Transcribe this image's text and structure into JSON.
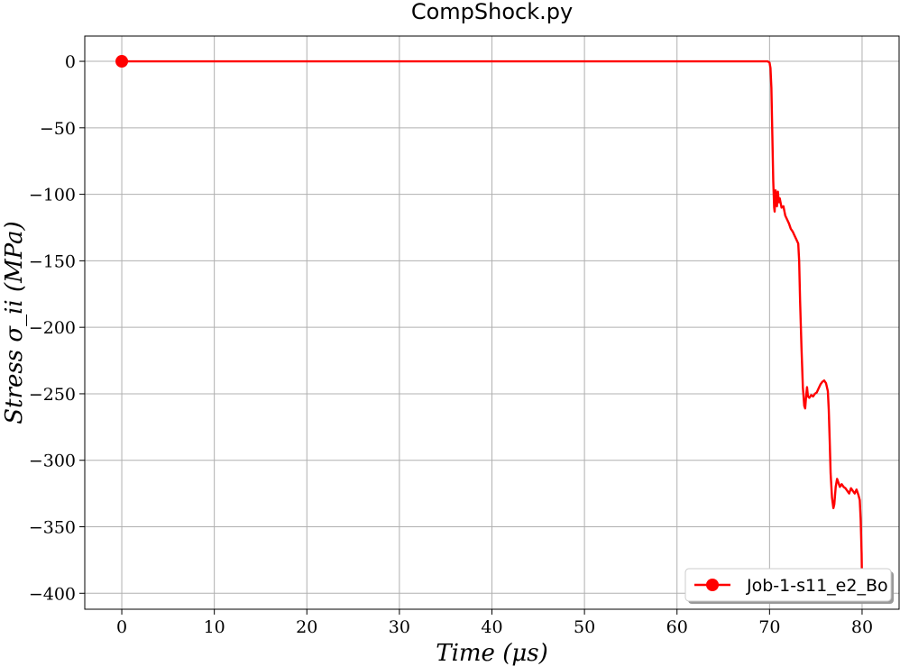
{
  "chart_data": {
    "type": "line",
    "title": "CompShock.py",
    "xlabel": "Time (μs)",
    "ylabel": "Stress σ_ii (MPa)",
    "xlim": [
      -4,
      84
    ],
    "ylim": [
      -412,
      19
    ],
    "xticks": [
      0,
      10,
      20,
      30,
      40,
      50,
      60,
      70,
      80
    ],
    "yticks": [
      0,
      -50,
      -100,
      -150,
      -200,
      -250,
      -300,
      -350,
      -400
    ],
    "xtick_labels": [
      "0",
      "10",
      "20",
      "30",
      "40",
      "50",
      "60",
      "70",
      "80"
    ],
    "ytick_labels": [
      "0",
      "−50",
      "−100",
      "−150",
      "−200",
      "−250",
      "−300",
      "−350",
      "−400"
    ],
    "grid": true,
    "legend_position": "lower-right",
    "series": [
      {
        "name": "Job-1-s11_e2_Bo",
        "color": "#ff0000",
        "marker": "circle",
        "marker_at": [
          0,
          0
        ],
        "points": [
          [
            0,
            0
          ],
          [
            69.8,
            0
          ],
          [
            70.0,
            -1
          ],
          [
            70.1,
            -5
          ],
          [
            70.2,
            -20
          ],
          [
            70.3,
            -55
          ],
          [
            70.4,
            -90
          ],
          [
            70.5,
            -110
          ],
          [
            70.55,
            -113
          ],
          [
            70.6,
            -105
          ],
          [
            70.65,
            -97
          ],
          [
            70.7,
            -103
          ],
          [
            70.8,
            -109
          ],
          [
            70.9,
            -98
          ],
          [
            71.0,
            -106
          ],
          [
            71.1,
            -103
          ],
          [
            71.3,
            -110
          ],
          [
            71.5,
            -109
          ],
          [
            71.7,
            -116
          ],
          [
            71.9,
            -119
          ],
          [
            72.1,
            -122
          ],
          [
            72.3,
            -126
          ],
          [
            72.5,
            -128
          ],
          [
            72.7,
            -131
          ],
          [
            72.9,
            -134
          ],
          [
            73.1,
            -137
          ],
          [
            73.2,
            -150
          ],
          [
            73.3,
            -180
          ],
          [
            73.45,
            -215
          ],
          [
            73.6,
            -245
          ],
          [
            73.75,
            -259
          ],
          [
            73.85,
            -261
          ],
          [
            73.95,
            -252
          ],
          [
            74.05,
            -245
          ],
          [
            74.15,
            -252
          ],
          [
            74.3,
            -253
          ],
          [
            74.5,
            -251
          ],
          [
            74.7,
            -252
          ],
          [
            74.9,
            -250
          ],
          [
            75.1,
            -249
          ],
          [
            75.3,
            -246
          ],
          [
            75.5,
            -243
          ],
          [
            75.7,
            -241
          ],
          [
            75.9,
            -240
          ],
          [
            76.1,
            -242
          ],
          [
            76.3,
            -248
          ],
          [
            76.4,
            -262
          ],
          [
            76.5,
            -285
          ],
          [
            76.6,
            -310
          ],
          [
            76.75,
            -328
          ],
          [
            76.9,
            -336
          ],
          [
            77.0,
            -333
          ],
          [
            77.15,
            -320
          ],
          [
            77.3,
            -314
          ],
          [
            77.45,
            -317
          ],
          [
            77.6,
            -320
          ],
          [
            77.8,
            -318
          ],
          [
            78.0,
            -320
          ],
          [
            78.2,
            -321
          ],
          [
            78.4,
            -323
          ],
          [
            78.6,
            -325
          ],
          [
            78.8,
            -321
          ],
          [
            79.0,
            -323
          ],
          [
            79.2,
            -325
          ],
          [
            79.4,
            -322
          ],
          [
            79.6,
            -326
          ],
          [
            79.75,
            -330
          ],
          [
            79.85,
            -345
          ],
          [
            79.95,
            -370
          ],
          [
            80.0,
            -395
          ]
        ]
      }
    ]
  }
}
